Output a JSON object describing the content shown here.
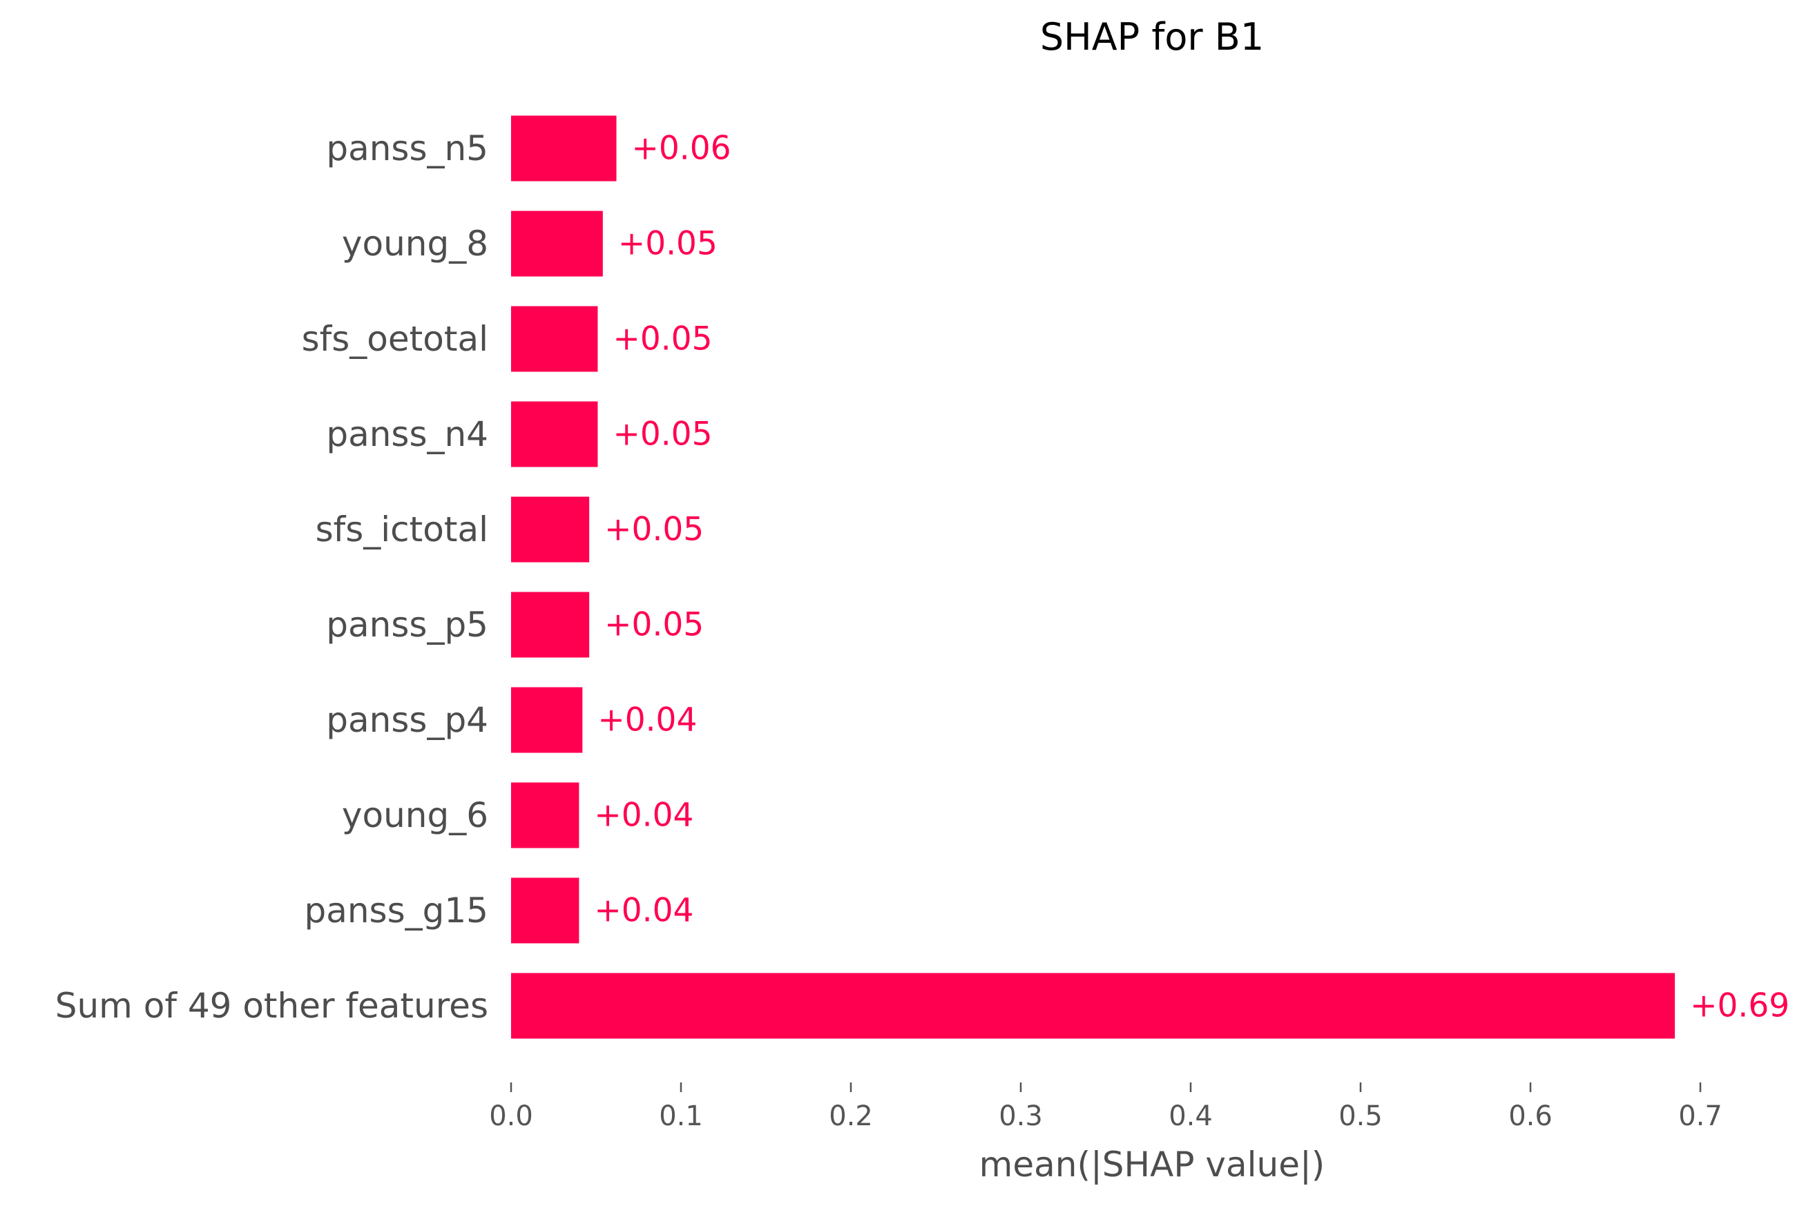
{
  "chart_data": {
    "type": "bar",
    "orientation": "horizontal",
    "title": "SHAP for B1",
    "xlabel": "mean(|SHAP value|)",
    "ylabel": "",
    "xlim": [
      0,
      0.7
    ],
    "xticks": [
      0.0,
      0.1,
      0.2,
      0.3,
      0.4,
      0.5,
      0.6,
      0.7
    ],
    "xtick_labels": [
      "0.0",
      "0.1",
      "0.2",
      "0.3",
      "0.4",
      "0.5",
      "0.6",
      "0.7"
    ],
    "categories": [
      "panss_n5",
      "young_8",
      "sfs_oetotal",
      "panss_n4",
      "sfs_ictotal",
      "panss_p5",
      "panss_p4",
      "young_6",
      "panss_g15",
      "Sum of 49 other features"
    ],
    "values": [
      0.062,
      0.054,
      0.051,
      0.051,
      0.046,
      0.046,
      0.042,
      0.04,
      0.04,
      0.685
    ],
    "value_labels": [
      "+0.06",
      "+0.05",
      "+0.05",
      "+0.05",
      "+0.05",
      "+0.05",
      "+0.04",
      "+0.04",
      "+0.04",
      "+0.69"
    ],
    "bar_color": "#ff0051",
    "grid": false,
    "legend": "none"
  },
  "colors": {
    "bar": "#ff0051",
    "value_text": "#ff0051",
    "category_text": "#4d4d4d",
    "axis": "#555555"
  }
}
